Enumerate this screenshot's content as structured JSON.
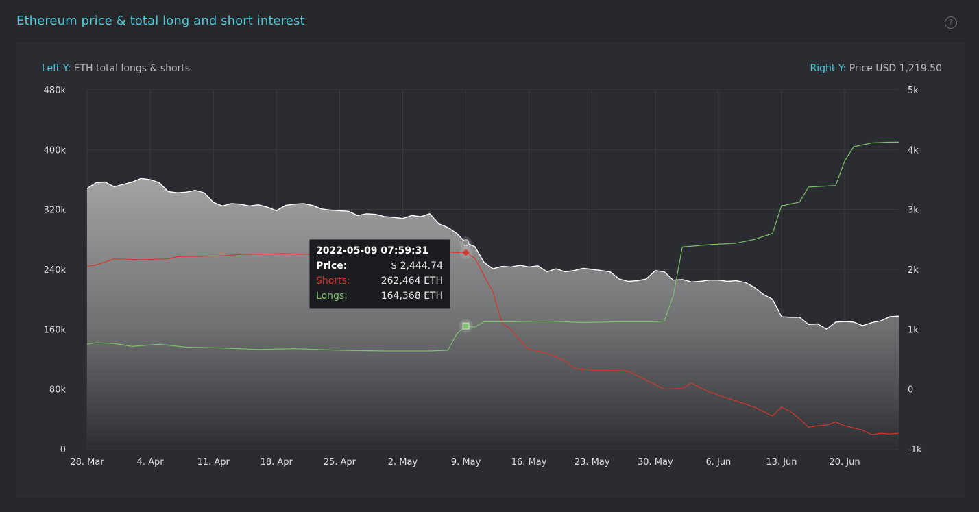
{
  "title": "Ethereum price & total long and short interest",
  "help_icon": "question-circle-icon",
  "left_axis_caption": {
    "key": "Left Y:",
    "text": "ETH total longs & shorts"
  },
  "right_axis_caption": {
    "key": "Right Y:",
    "text": "Price USD 1,219.50"
  },
  "tooltip": {
    "timestamp": "2022-05-09 07:59:31",
    "price_label": "Price:",
    "price_value": "$ 2,444.74",
    "shorts_label": "Shorts:",
    "shorts_value": "262,464 ETH",
    "longs_label": "Longs:",
    "longs_value": "164,368 ETH"
  },
  "colors": {
    "accent": "#4ec8d8",
    "price": "#ffffff",
    "shorts": "#d8352a",
    "longs": "#7ec16c"
  },
  "chart_data": {
    "type": "line",
    "title": "Ethereum price & total long and short interest",
    "x_ticks": [
      "28. Mar",
      "4. Apr",
      "11. Apr",
      "18. Apr",
      "25. Apr",
      "2. May",
      "9. May",
      "16. May",
      "23. May",
      "30. May",
      "6. Jun",
      "13. Jun",
      "20. Jun"
    ],
    "x_range": [
      "2022-03-28",
      "2022-06-26"
    ],
    "y_left": {
      "label": "ETH total longs & shorts",
      "ticks": [
        "0",
        "80k",
        "160k",
        "240k",
        "320k",
        "400k",
        "480k"
      ],
      "range": [
        0,
        480000
      ]
    },
    "y_right": {
      "label": "Price USD",
      "ticks": [
        "-1k",
        "0",
        "1k",
        "2k",
        "3k",
        "4k",
        "5k"
      ],
      "range": [
        -1000,
        5000
      ]
    },
    "grid": true,
    "series": [
      {
        "name": "Price",
        "axis": "right",
        "style": "area",
        "points": [
          [
            "2022-03-28",
            3350
          ],
          [
            "2022-03-29",
            3450
          ],
          [
            "2022-03-30",
            3460
          ],
          [
            "2022-03-31",
            3380
          ],
          [
            "2022-04-01",
            3420
          ],
          [
            "2022-04-02",
            3460
          ],
          [
            "2022-04-03",
            3520
          ],
          [
            "2022-04-04",
            3500
          ],
          [
            "2022-04-05",
            3450
          ],
          [
            "2022-04-06",
            3300
          ],
          [
            "2022-04-07",
            3280
          ],
          [
            "2022-04-08",
            3290
          ],
          [
            "2022-04-09",
            3320
          ],
          [
            "2022-04-10",
            3280
          ],
          [
            "2022-04-11",
            3120
          ],
          [
            "2022-04-12",
            3060
          ],
          [
            "2022-04-13",
            3100
          ],
          [
            "2022-04-14",
            3090
          ],
          [
            "2022-04-15",
            3060
          ],
          [
            "2022-04-16",
            3080
          ],
          [
            "2022-04-17",
            3040
          ],
          [
            "2022-04-18",
            2980
          ],
          [
            "2022-04-19",
            3070
          ],
          [
            "2022-04-20",
            3090
          ],
          [
            "2022-04-21",
            3100
          ],
          [
            "2022-04-22",
            3070
          ],
          [
            "2022-04-23",
            3010
          ],
          [
            "2022-04-24",
            2990
          ],
          [
            "2022-04-25",
            2980
          ],
          [
            "2022-04-26",
            2970
          ],
          [
            "2022-04-27",
            2900
          ],
          [
            "2022-04-28",
            2930
          ],
          [
            "2022-04-29",
            2920
          ],
          [
            "2022-04-30",
            2880
          ],
          [
            "2022-05-01",
            2870
          ],
          [
            "2022-05-02",
            2850
          ],
          [
            "2022-05-03",
            2900
          ],
          [
            "2022-05-04",
            2880
          ],
          [
            "2022-05-05",
            2930
          ],
          [
            "2022-05-06",
            2760
          ],
          [
            "2022-05-07",
            2700
          ],
          [
            "2022-05-08",
            2600
          ],
          [
            "2022-05-09",
            2444.74
          ],
          [
            "2022-05-10",
            2380
          ],
          [
            "2022-05-11",
            2120
          ],
          [
            "2022-05-12",
            2010
          ],
          [
            "2022-05-13",
            2050
          ],
          [
            "2022-05-14",
            2040
          ],
          [
            "2022-05-15",
            2070
          ],
          [
            "2022-05-16",
            2040
          ],
          [
            "2022-05-17",
            2060
          ],
          [
            "2022-05-18",
            1960
          ],
          [
            "2022-05-19",
            2010
          ],
          [
            "2022-05-20",
            1960
          ],
          [
            "2022-05-21",
            1980
          ],
          [
            "2022-05-22",
            2020
          ],
          [
            "2022-05-23",
            2000
          ],
          [
            "2022-05-24",
            1980
          ],
          [
            "2022-05-25",
            1960
          ],
          [
            "2022-05-26",
            1840
          ],
          [
            "2022-05-27",
            1800
          ],
          [
            "2022-05-28",
            1810
          ],
          [
            "2022-05-29",
            1840
          ],
          [
            "2022-05-30",
            1980
          ],
          [
            "2022-05-31",
            1960
          ],
          [
            "2022-06-01",
            1820
          ],
          [
            "2022-06-02",
            1830
          ],
          [
            "2022-06-03",
            1790
          ],
          [
            "2022-06-04",
            1800
          ],
          [
            "2022-06-05",
            1820
          ],
          [
            "2022-06-06",
            1820
          ],
          [
            "2022-06-07",
            1800
          ],
          [
            "2022-06-08",
            1810
          ],
          [
            "2022-06-09",
            1780
          ],
          [
            "2022-06-10",
            1700
          ],
          [
            "2022-06-11",
            1580
          ],
          [
            "2022-06-12",
            1500
          ],
          [
            "2022-06-13",
            1210
          ],
          [
            "2022-06-14",
            1200
          ],
          [
            "2022-06-15",
            1200
          ],
          [
            "2022-06-16",
            1080
          ],
          [
            "2022-06-17",
            1090
          ],
          [
            "2022-06-18",
            1000
          ],
          [
            "2022-06-19",
            1120
          ],
          [
            "2022-06-20",
            1130
          ],
          [
            "2022-06-21",
            1120
          ],
          [
            "2022-06-22",
            1060
          ],
          [
            "2022-06-23",
            1110
          ],
          [
            "2022-06-24",
            1140
          ],
          [
            "2022-06-25",
            1210
          ],
          [
            "2022-06-26",
            1219.5
          ]
        ]
      },
      {
        "name": "Shorts",
        "axis": "left",
        "style": "line",
        "points": [
          [
            "2022-03-28",
            244000
          ],
          [
            "2022-03-29",
            246000
          ],
          [
            "2022-03-31",
            254000
          ],
          [
            "2022-04-03",
            253000
          ],
          [
            "2022-04-06",
            254000
          ],
          [
            "2022-04-07",
            257000
          ],
          [
            "2022-04-12",
            258000
          ],
          [
            "2022-04-14",
            260000
          ],
          [
            "2022-04-19",
            261000
          ],
          [
            "2022-04-22",
            260000
          ],
          [
            "2022-04-26",
            259000
          ],
          [
            "2022-04-30",
            262000
          ],
          [
            "2022-05-04",
            261000
          ],
          [
            "2022-05-07",
            263000
          ],
          [
            "2022-05-09",
            262464
          ],
          [
            "2022-05-10",
            255000
          ],
          [
            "2022-05-11",
            232000
          ],
          [
            "2022-05-12",
            210000
          ],
          [
            "2022-05-13",
            168000
          ],
          [
            "2022-05-14",
            160000
          ],
          [
            "2022-05-15",
            145000
          ],
          [
            "2022-05-16",
            133000
          ],
          [
            "2022-05-18",
            128000
          ],
          [
            "2022-05-20",
            118000
          ],
          [
            "2022-05-21",
            108000
          ],
          [
            "2022-05-23",
            105000
          ],
          [
            "2022-05-25",
            105000
          ],
          [
            "2022-05-27",
            104000
          ],
          [
            "2022-05-29",
            92000
          ],
          [
            "2022-05-31",
            80000
          ],
          [
            "2022-06-02",
            81000
          ],
          [
            "2022-06-03",
            88000
          ],
          [
            "2022-06-05",
            76000
          ],
          [
            "2022-06-07",
            68000
          ],
          [
            "2022-06-09",
            60000
          ],
          [
            "2022-06-10",
            56000
          ],
          [
            "2022-06-11",
            50000
          ],
          [
            "2022-06-12",
            44000
          ],
          [
            "2022-06-13",
            56000
          ],
          [
            "2022-06-14",
            50000
          ],
          [
            "2022-06-15",
            40000
          ],
          [
            "2022-06-16",
            29000
          ],
          [
            "2022-06-17",
            31000
          ],
          [
            "2022-06-18",
            32000
          ],
          [
            "2022-06-19",
            36000
          ],
          [
            "2022-06-20",
            31000
          ],
          [
            "2022-06-21",
            28000
          ],
          [
            "2022-06-22",
            25000
          ],
          [
            "2022-06-23",
            19000
          ],
          [
            "2022-06-24",
            21000
          ],
          [
            "2022-06-25",
            20000
          ],
          [
            "2022-06-26",
            21000
          ]
        ]
      },
      {
        "name": "Longs",
        "axis": "left",
        "style": "line",
        "points": [
          [
            "2022-03-28",
            140000
          ],
          [
            "2022-03-29",
            142000
          ],
          [
            "2022-03-31",
            141000
          ],
          [
            "2022-04-02",
            137000
          ],
          [
            "2022-04-05",
            140000
          ],
          [
            "2022-04-08",
            136000
          ],
          [
            "2022-04-12",
            135000
          ],
          [
            "2022-04-16",
            133000
          ],
          [
            "2022-04-20",
            134000
          ],
          [
            "2022-04-25",
            132000
          ],
          [
            "2022-04-30",
            131000
          ],
          [
            "2022-05-05",
            131000
          ],
          [
            "2022-05-07",
            132000
          ],
          [
            "2022-05-08",
            154000
          ],
          [
            "2022-05-09",
            164368
          ],
          [
            "2022-05-10",
            163000
          ],
          [
            "2022-05-11",
            170000
          ],
          [
            "2022-05-14",
            170000
          ],
          [
            "2022-05-18",
            171000
          ],
          [
            "2022-05-22",
            169000
          ],
          [
            "2022-05-26",
            170000
          ],
          [
            "2022-05-30",
            170000
          ],
          [
            "2022-05-31",
            171000
          ],
          [
            "2022-06-01",
            205000
          ],
          [
            "2022-06-02",
            270000
          ],
          [
            "2022-06-05",
            273000
          ],
          [
            "2022-06-08",
            275000
          ],
          [
            "2022-06-10",
            280000
          ],
          [
            "2022-06-12",
            288000
          ],
          [
            "2022-06-13",
            325000
          ],
          [
            "2022-06-15",
            330000
          ],
          [
            "2022-06-16",
            350000
          ],
          [
            "2022-06-19",
            352000
          ],
          [
            "2022-06-20",
            385000
          ],
          [
            "2022-06-21",
            404000
          ],
          [
            "2022-06-23",
            409000
          ],
          [
            "2022-06-25",
            410000
          ],
          [
            "2022-06-26",
            410000
          ]
        ]
      }
    ],
    "tooltip_at": "2022-05-09"
  }
}
